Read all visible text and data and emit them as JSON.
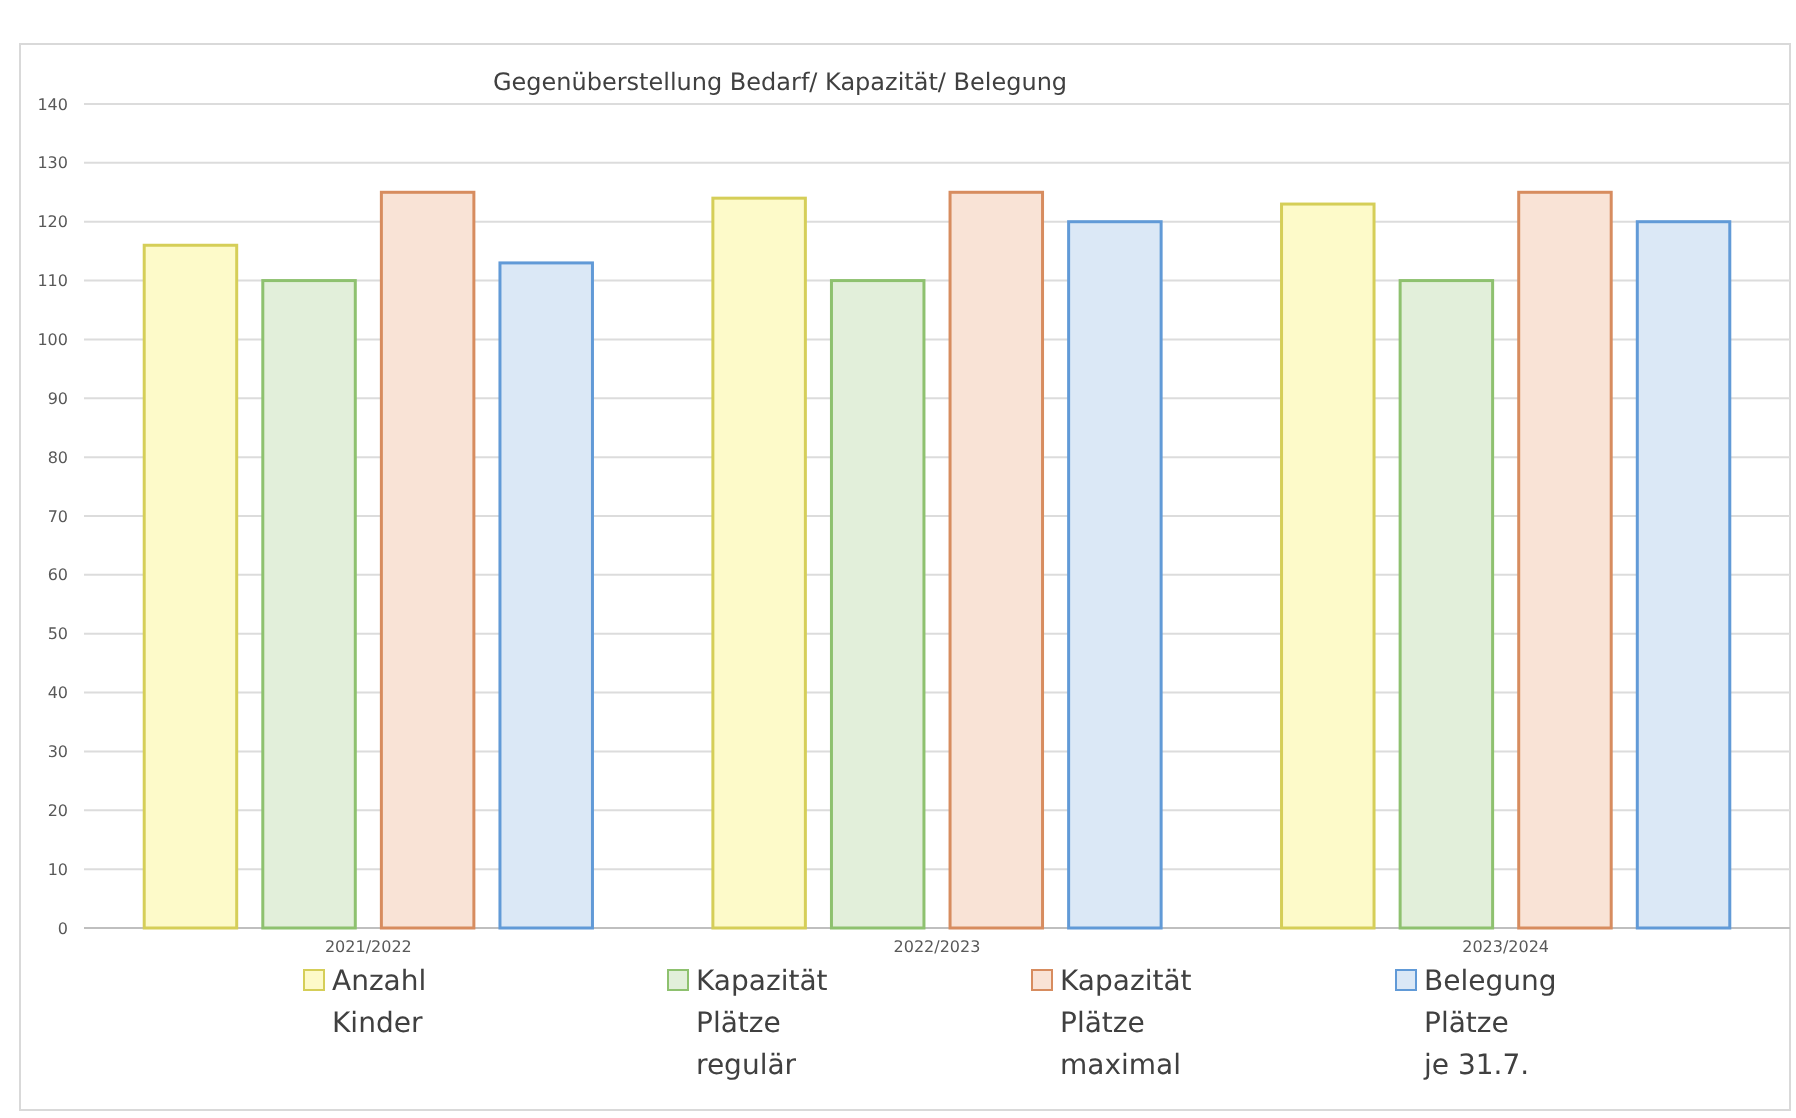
{
  "chart_data": {
    "type": "bar",
    "title": "Gegenüberstellung Bedarf/ Kapazität/ Belegung",
    "categories": [
      "2021/2022",
      "2022/2023",
      "2023/2024"
    ],
    "series": [
      {
        "name": "Anzahl Kinder",
        "color": "#fdfac9",
        "values": [
          116,
          124,
          123
        ]
      },
      {
        "name": "Kapazität Plätze regulär",
        "color": "#e2efda",
        "values": [
          110,
          110,
          110
        ]
      },
      {
        "name": "Kapazität Plätze maximal",
        "color": "#f9e3d6",
        "values": [
          125,
          125,
          125
        ]
      },
      {
        "name": "Belegung Plätze je 31.7.",
        "color": "#dbe8f6",
        "values": [
          113,
          120,
          120
        ]
      }
    ],
    "ylim": [
      0,
      140
    ],
    "yticks": [
      0,
      10,
      20,
      30,
      40,
      50,
      60,
      70,
      80,
      90,
      100,
      110,
      120,
      130,
      140
    ],
    "grid": "y",
    "legend": "bottom"
  }
}
